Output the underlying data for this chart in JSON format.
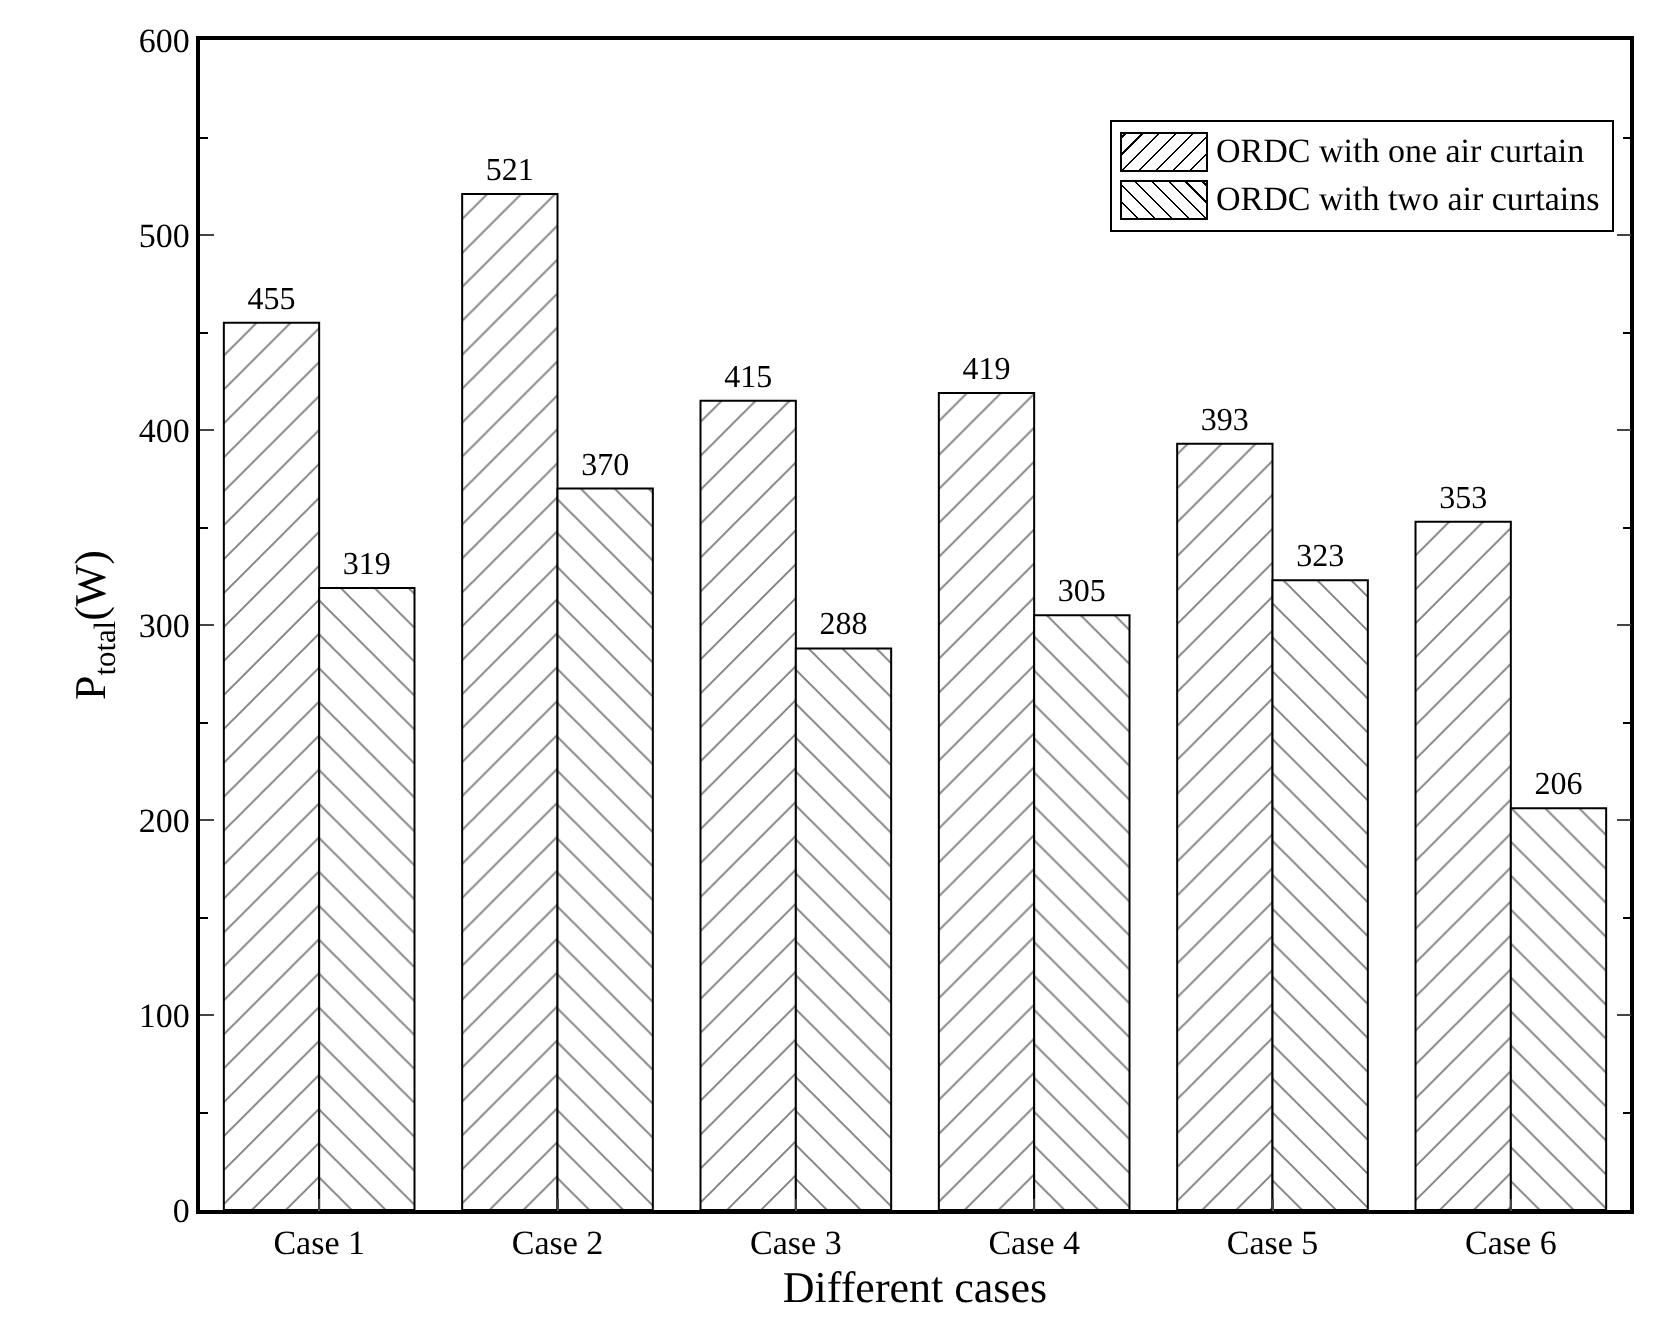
{
  "chart_data": {
    "type": "bar",
    "xlabel": "Different cases",
    "ylabel": "P$_{total}$(W)",
    "categories": [
      "Case 1",
      "Case 2",
      "Case 3",
      "Case 4",
      "Case 5",
      "Case 6"
    ],
    "series": [
      {
        "name": "ORDC with one air curtain",
        "color": "#000000",
        "values": [
          455,
          521,
          415,
          419,
          393,
          353
        ]
      },
      {
        "name": "ORDC with two air curtains",
        "color": "#000000",
        "values": [
          319,
          370,
          288,
          305,
          323,
          206
        ]
      }
    ],
    "ylim": [
      0,
      600
    ],
    "yticks": [
      0,
      100,
      200,
      300,
      400,
      500,
      600
    ],
    "grid": false,
    "legend": "top right",
    "data_labels": true
  }
}
